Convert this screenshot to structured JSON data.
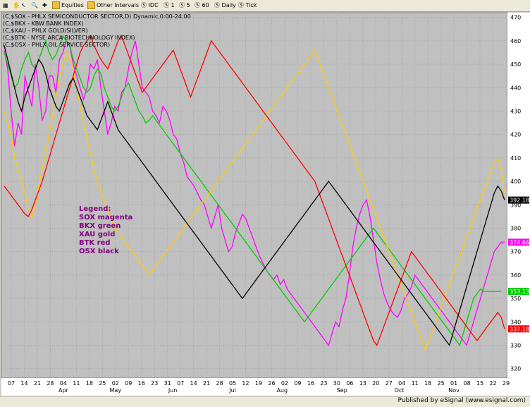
{
  "toolbar": {
    "items": [
      "Equities",
      "Other Intervals",
      "IDC",
      "1",
      "5",
      "60",
      "Daily",
      "Tick"
    ]
  },
  "status": "Published by eSignal (www.esignal.com)",
  "chart_data": {
    "type": "line",
    "title_lines": [
      "(C,$SOX - PHLX SEMICONDUCTOR SECTOR,D) Dynamic,0:00-24:00",
      "(C,$BKX - KBW BANK INDEX)",
      "(C,$XAU - PHLX GOLD/SILVER)",
      "(C,$BTK - NYSE ARCA BIOTECHNOLOGY INDEX)",
      "(C,$OSX - PHLX OIL SERVICE SECTOR)"
    ],
    "legend": [
      "Legend:",
      "SOX magenta",
      "BKX green",
      "XAU gold",
      "BTK red",
      "OSX black"
    ],
    "legend_color": "#800080",
    "ylim": [
      316,
      472
    ],
    "yticks": [
      470,
      460,
      450,
      440,
      430,
      420,
      410,
      400,
      390,
      380,
      370,
      360,
      350,
      340,
      330,
      320
    ],
    "xlim": [
      0,
      146
    ],
    "xtick_labels": [
      "07",
      "14",
      "21",
      "28",
      "04",
      "11",
      "18",
      "25",
      "02",
      "09",
      "16",
      "23",
      "31",
      "07",
      "14",
      "21",
      "28",
      "05",
      "12",
      "19",
      "26",
      "02",
      "09",
      "16",
      "23",
      "30",
      "06",
      "13",
      "20",
      "27",
      "04",
      "11",
      "18",
      "25",
      "01",
      "08",
      "15",
      "22",
      "29"
    ],
    "xtick_index": [
      0,
      5,
      10,
      15,
      20,
      25,
      30,
      35,
      40,
      45,
      50,
      55,
      60,
      65,
      70,
      75,
      80,
      85,
      90,
      95,
      100,
      105,
      110,
      115,
      120,
      125,
      130,
      135,
      140,
      145,
      150,
      155,
      160,
      165,
      170,
      175,
      180,
      185,
      190
    ],
    "month_labels": [
      {
        "label": "Apr",
        "i": 20
      },
      {
        "label": "May",
        "i": 40
      },
      {
        "label": "Jun",
        "i": 62
      },
      {
        "label": "Jul",
        "i": 85
      },
      {
        "label": "Aug",
        "i": 104
      },
      {
        "label": "Sep",
        "i": 127
      },
      {
        "label": "Oct",
        "i": 149
      },
      {
        "label": "Nov",
        "i": 170
      }
    ],
    "price_tags": [
      {
        "value": "392.18",
        "color": "#000000",
        "y": 392
      },
      {
        "value": "374.66",
        "color": "#ff00ff",
        "y": 374
      },
      {
        "value": "353.13",
        "color": "#00cc00",
        "y": 353
      },
      {
        "value": "337.18",
        "color": "#ff0000",
        "y": 337
      }
    ],
    "series": [
      {
        "name": "SOX magenta",
        "color": "#ff00ff",
        "values": [
          456,
          448,
          430,
          415,
          425,
          420,
          445,
          438,
          432,
          450,
          440,
          426,
          430,
          445,
          445,
          438,
          452,
          455,
          460,
          458,
          450,
          445,
          440,
          435,
          440,
          450,
          448,
          452,
          440,
          430,
          420,
          425,
          432,
          430,
          438,
          440,
          448,
          455,
          460,
          450,
          440,
          438,
          436,
          430,
          428,
          425,
          432,
          430,
          426,
          420,
          418,
          412,
          408,
          402,
          400,
          398,
          395,
          392,
          390,
          385,
          380,
          385,
          390,
          380,
          375,
          370,
          372,
          378,
          382,
          386,
          384,
          380,
          376,
          372,
          368,
          365,
          362,
          360,
          358,
          360,
          356,
          358,
          354,
          352,
          350,
          348,
          346,
          344,
          342,
          340,
          338,
          336,
          334,
          332,
          330,
          335,
          340,
          338,
          345,
          350,
          360,
          372,
          380,
          386,
          390,
          392,
          385,
          375,
          365,
          358,
          352,
          348,
          345,
          343,
          342,
          345,
          350,
          352,
          355,
          360,
          358,
          356,
          354,
          352,
          350,
          348,
          346,
          344,
          342,
          340,
          338,
          336,
          334,
          332,
          330,
          335,
          340,
          345,
          350,
          355,
          360,
          365,
          370,
          372,
          374,
          374
        ]
      },
      {
        "name": "BKX green",
        "color": "#00cc00",
        "values": [
          455,
          450,
          445,
          440,
          442,
          448,
          452,
          455,
          450,
          448,
          452,
          456,
          460,
          455,
          452,
          454,
          458,
          462,
          460,
          458,
          452,
          448,
          444,
          440,
          438,
          440,
          445,
          448,
          446,
          440,
          436,
          432,
          430,
          432,
          436,
          440,
          442,
          438,
          434,
          430,
          428,
          425,
          426,
          428,
          426,
          424,
          422,
          420,
          418,
          416,
          414,
          412,
          410,
          408,
          406,
          404,
          402,
          400,
          398,
          396,
          394,
          392,
          390,
          388,
          386,
          384,
          382,
          380,
          378,
          376,
          374,
          372,
          370,
          368,
          366,
          364,
          362,
          360,
          358,
          356,
          354,
          352,
          350,
          348,
          346,
          344,
          342,
          340,
          342,
          344,
          346,
          348,
          350,
          352,
          354,
          356,
          358,
          360,
          362,
          364,
          366,
          368,
          370,
          372,
          374,
          376,
          378,
          380,
          378,
          376,
          374,
          372,
          370,
          368,
          366,
          364,
          362,
          360,
          358,
          356,
          354,
          352,
          350,
          348,
          346,
          344,
          342,
          340,
          338,
          336,
          334,
          332,
          330,
          335,
          340,
          345,
          350,
          352,
          354,
          353,
          353,
          353,
          353,
          353,
          353
        ]
      },
      {
        "name": "XAU gold",
        "color": "#ffcc00",
        "values": [
          430,
          425,
          420,
          410,
          405,
          400,
          395,
          388,
          385,
          390,
          398,
          405,
          412,
          420,
          428,
          436,
          444,
          450,
          455,
          452,
          448,
          440,
          432,
          425,
          418,
          412,
          405,
          400,
          396,
          392,
          388,
          384,
          380,
          378,
          376,
          374,
          372,
          370,
          368,
          366,
          364,
          362,
          360,
          362,
          364,
          366,
          368,
          370,
          372,
          374,
          376,
          378,
          380,
          382,
          384,
          386,
          388,
          390,
          392,
          394,
          396,
          398,
          400,
          402,
          404,
          406,
          408,
          410,
          412,
          414,
          416,
          418,
          420,
          422,
          424,
          426,
          428,
          430,
          432,
          434,
          436,
          438,
          440,
          442,
          444,
          446,
          448,
          450,
          452,
          454,
          456,
          452,
          448,
          444,
          440,
          436,
          432,
          428,
          424,
          420,
          416,
          412,
          408,
          404,
          400,
          396,
          392,
          388,
          384,
          380,
          376,
          372,
          368,
          364,
          360,
          356,
          352,
          348,
          344,
          340,
          336,
          332,
          328,
          332,
          336,
          340,
          344,
          348,
          352,
          356,
          360,
          364,
          368,
          372,
          376,
          380,
          384,
          388,
          392,
          396,
          400,
          404,
          408,
          410,
          405,
          395
        ]
      },
      {
        "name": "BTK red",
        "color": "#ff0000",
        "values": [
          398,
          396,
          394,
          392,
          390,
          388,
          386,
          385,
          388,
          392,
          396,
          400,
          405,
          410,
          415,
          420,
          425,
          430,
          435,
          440,
          445,
          450,
          455,
          458,
          460,
          462,
          458,
          455,
          452,
          450,
          448,
          452,
          456,
          460,
          462,
          458,
          454,
          450,
          446,
          442,
          438,
          440,
          442,
          444,
          446,
          448,
          450,
          452,
          454,
          456,
          452,
          448,
          444,
          440,
          436,
          440,
          444,
          448,
          452,
          456,
          460,
          458,
          456,
          454,
          452,
          450,
          448,
          446,
          444,
          442,
          440,
          438,
          436,
          434,
          432,
          430,
          428,
          426,
          424,
          422,
          420,
          418,
          416,
          414,
          412,
          410,
          408,
          406,
          404,
          402,
          400,
          396,
          392,
          388,
          384,
          380,
          376,
          372,
          368,
          364,
          360,
          356,
          352,
          348,
          344,
          340,
          336,
          332,
          330,
          334,
          338,
          342,
          346,
          350,
          354,
          358,
          362,
          366,
          370,
          368,
          366,
          364,
          362,
          360,
          358,
          356,
          354,
          352,
          350,
          348,
          346,
          344,
          342,
          340,
          338,
          336,
          334,
          332,
          334,
          336,
          338,
          340,
          342,
          344,
          342,
          337
        ]
      },
      {
        "name": "OSX black",
        "color": "#000000",
        "values": [
          458,
          452,
          446,
          440,
          434,
          430,
          436,
          440,
          444,
          448,
          452,
          450,
          446,
          440,
          436,
          432,
          430,
          434,
          438,
          442,
          444,
          440,
          436,
          432,
          428,
          426,
          424,
          422,
          426,
          430,
          434,
          430,
          426,
          422,
          420,
          418,
          416,
          414,
          412,
          410,
          408,
          406,
          404,
          402,
          400,
          398,
          396,
          394,
          392,
          390,
          388,
          386,
          384,
          382,
          380,
          378,
          376,
          374,
          372,
          370,
          368,
          366,
          364,
          362,
          360,
          358,
          356,
          354,
          352,
          350,
          352,
          354,
          356,
          358,
          360,
          362,
          364,
          366,
          368,
          370,
          372,
          374,
          376,
          378,
          380,
          382,
          384,
          386,
          388,
          390,
          392,
          394,
          396,
          398,
          400,
          398,
          396,
          394,
          392,
          390,
          388,
          386,
          384,
          382,
          380,
          378,
          376,
          374,
          372,
          370,
          368,
          366,
          364,
          362,
          360,
          358,
          356,
          354,
          352,
          350,
          348,
          346,
          344,
          342,
          340,
          338,
          336,
          334,
          332,
          330,
          335,
          340,
          345,
          350,
          355,
          360,
          365,
          370,
          375,
          380,
          385,
          390,
          395,
          398,
          396,
          392
        ]
      }
    ]
  }
}
